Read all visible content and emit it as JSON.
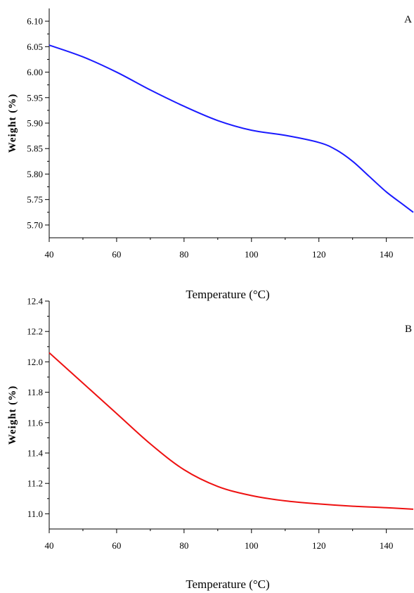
{
  "chart_data": [
    {
      "type": "line",
      "panel_label": "A",
      "xlabel": "Temperature (°C)",
      "ylabel": "Weight (%)",
      "xlim": [
        40,
        148
      ],
      "ylim": [
        5.675,
        6.125
      ],
      "xticks": [
        40,
        60,
        80,
        100,
        120,
        140
      ],
      "yticks": [
        "5.70",
        "5.75",
        "5.80",
        "5.85",
        "5.90",
        "5.95",
        "6.00",
        "6.05",
        "6.10"
      ],
      "grid": false,
      "legend": "none",
      "color": "#1a1aff",
      "series": [
        {
          "x": [
            40,
            50,
            60,
            70,
            80,
            90,
            100,
            110,
            120,
            125,
            130,
            135,
            140,
            145,
            148
          ],
          "y": [
            6.053,
            6.03,
            6.0,
            5.965,
            5.933,
            5.905,
            5.886,
            5.876,
            5.862,
            5.848,
            5.825,
            5.795,
            5.765,
            5.74,
            5.725
          ]
        }
      ]
    },
    {
      "type": "line",
      "panel_label": "B",
      "xlabel": "Temperature (°C)",
      "ylabel": "Weight (%)",
      "xlim": [
        40,
        148
      ],
      "ylim": [
        10.9,
        12.4
      ],
      "xticks": [
        40,
        60,
        80,
        100,
        120,
        140
      ],
      "yticks": [
        "11.0",
        "11.2",
        "11.4",
        "11.6",
        "11.8",
        "12.0",
        "12.2",
        "12.4"
      ],
      "grid": false,
      "legend": "none",
      "color": "#ee1111",
      "series": [
        {
          "x": [
            40,
            50,
            60,
            70,
            80,
            90,
            100,
            110,
            120,
            130,
            140,
            148
          ],
          "y": [
            12.06,
            11.86,
            11.66,
            11.46,
            11.29,
            11.18,
            11.12,
            11.085,
            11.065,
            11.05,
            11.04,
            11.03
          ]
        }
      ]
    }
  ]
}
